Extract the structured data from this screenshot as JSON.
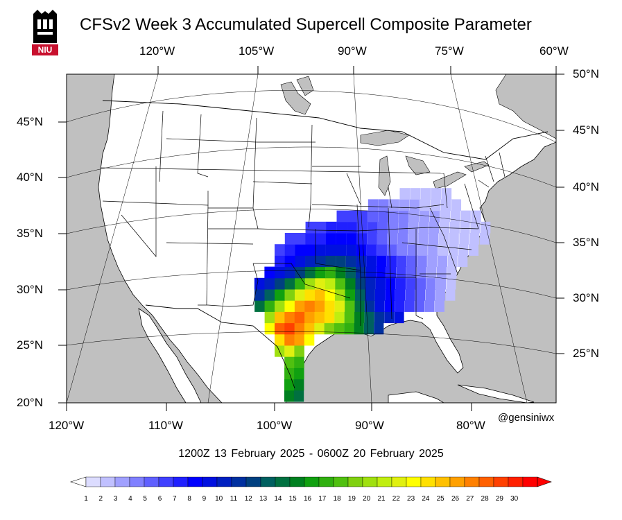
{
  "title": "CFSv2 Week 3 Accumulated Supercell Composite Parameter",
  "logo": {
    "text": "NIU",
    "colors": {
      "dark": "#000000",
      "red": "#c8102e"
    }
  },
  "top_lon_labels": [
    "120°W",
    "105°W",
    "90°W",
    "75°W",
    "60°W"
  ],
  "bottom_lon_labels": [
    "120°W",
    "110°W",
    "100°W",
    "90°W",
    "80°W"
  ],
  "left_lat_labels": [
    "45°N",
    "40°N",
    "35°N",
    "30°N",
    "25°N",
    "20°N"
  ],
  "right_lat_labels": [
    "50°N",
    "45°N",
    "40°N",
    "35°N",
    "30°N",
    "25°N"
  ],
  "handle": "@gensiniwx",
  "date_range": "1200Z 13  February  2025  - 0600Z 20  February  2025",
  "colorbar": {
    "labels": [
      "1",
      "2",
      "3",
      "4",
      "5",
      "6",
      "7",
      "8",
      "9",
      "10",
      "11",
      "12",
      "13",
      "14",
      "15",
      "16",
      "17",
      "18",
      "19",
      "20",
      "21",
      "22",
      "23",
      "24",
      "25",
      "26",
      "27",
      "28",
      "29",
      "30"
    ],
    "colors": [
      "#dcdcff",
      "#c0c0ff",
      "#a0a0ff",
      "#8080ff",
      "#6060ff",
      "#4040ff",
      "#2020ff",
      "#0000ff",
      "#0010e0",
      "#0020c0",
      "#0030a0",
      "#004080",
      "#006060",
      "#007040",
      "#008020",
      "#10a010",
      "#30b010",
      "#50c010",
      "#80d010",
      "#a0e010",
      "#c0ee10",
      "#e0f010",
      "#ffff00",
      "#ffe000",
      "#ffc000",
      "#ffa000",
      "#ff8000",
      "#ff6000",
      "#ff4000",
      "#ff2000",
      "#ff0000"
    ]
  },
  "colors": {
    "land": "#ffffff",
    "ocean": "#c0c0c0",
    "border": "#000000"
  },
  "scp_grid": {
    "cell_degrees": 1,
    "cells": [
      [
        -99,
        20,
        14
      ],
      [
        -98,
        20,
        13
      ],
      [
        -99,
        21,
        15
      ],
      [
        -98,
        21,
        14
      ],
      [
        -99,
        22,
        16
      ],
      [
        -98,
        22,
        15
      ],
      [
        -99,
        23,
        17
      ],
      [
        -98,
        23,
        16
      ],
      [
        -100,
        24,
        19
      ],
      [
        -99,
        24,
        21
      ],
      [
        -98,
        24,
        18
      ],
      [
        -100,
        25,
        23
      ],
      [
        -99,
        25,
        26
      ],
      [
        -98,
        25,
        25
      ],
      [
        -97,
        25,
        22
      ],
      [
        -101,
        26,
        22
      ],
      [
        -100,
        26,
        27
      ],
      [
        -99,
        26,
        28
      ],
      [
        -98,
        26,
        26
      ],
      [
        -97,
        26,
        24
      ],
      [
        -96,
        26,
        21
      ],
      [
        -95,
        26,
        18
      ],
      [
        -94,
        26,
        17
      ],
      [
        -93,
        26,
        16
      ],
      [
        -92,
        26,
        14
      ],
      [
        -91,
        26,
        12
      ],
      [
        -90,
        26,
        10
      ],
      [
        -101,
        27,
        19
      ],
      [
        -100,
        27,
        24
      ],
      [
        -99,
        27,
        26
      ],
      [
        -98,
        27,
        27
      ],
      [
        -97,
        27,
        25
      ],
      [
        -96,
        27,
        24
      ],
      [
        -95,
        27,
        23
      ],
      [
        -94,
        27,
        20
      ],
      [
        -93,
        27,
        17
      ],
      [
        -92,
        27,
        14
      ],
      [
        -91,
        27,
        12
      ],
      [
        -90,
        27,
        10
      ],
      [
        -89,
        27,
        9
      ],
      [
        -88,
        27,
        8
      ],
      [
        -102,
        28,
        13
      ],
      [
        -101,
        28,
        16
      ],
      [
        -100,
        28,
        19
      ],
      [
        -99,
        28,
        22
      ],
      [
        -98,
        28,
        25
      ],
      [
        -97,
        28,
        26
      ],
      [
        -96,
        28,
        25
      ],
      [
        -95,
        28,
        23
      ],
      [
        -94,
        28,
        21
      ],
      [
        -93,
        28,
        17
      ],
      [
        -92,
        28,
        13
      ],
      [
        -91,
        28,
        10
      ],
      [
        -90,
        28,
        8
      ],
      [
        -89,
        28,
        7
      ],
      [
        -88,
        28,
        6
      ],
      [
        -87,
        28,
        5
      ],
      [
        -86,
        28,
        4
      ],
      [
        -85,
        28,
        3
      ],
      [
        -84,
        28,
        2
      ],
      [
        -102,
        29,
        10
      ],
      [
        -101,
        29,
        12
      ],
      [
        -100,
        29,
        15
      ],
      [
        -99,
        29,
        18
      ],
      [
        -98,
        29,
        21
      ],
      [
        -97,
        29,
        23
      ],
      [
        -96,
        29,
        24
      ],
      [
        -95,
        29,
        22
      ],
      [
        -94,
        29,
        19
      ],
      [
        -93,
        29,
        15
      ],
      [
        -92,
        29,
        12
      ],
      [
        -91,
        29,
        9
      ],
      [
        -90,
        29,
        8
      ],
      [
        -89,
        29,
        7
      ],
      [
        -88,
        29,
        6
      ],
      [
        -87,
        29,
        5
      ],
      [
        -86,
        29,
        4
      ],
      [
        -85,
        29,
        3
      ],
      [
        -84,
        29,
        2
      ],
      [
        -83,
        29,
        1
      ],
      [
        -102,
        30,
        8
      ],
      [
        -101,
        30,
        9
      ],
      [
        -100,
        30,
        11
      ],
      [
        -99,
        30,
        13
      ],
      [
        -98,
        30,
        16
      ],
      [
        -97,
        30,
        19
      ],
      [
        -96,
        30,
        21
      ],
      [
        -95,
        30,
        20
      ],
      [
        -94,
        30,
        17
      ],
      [
        -93,
        30,
        14
      ],
      [
        -92,
        30,
        11
      ],
      [
        -91,
        30,
        9
      ],
      [
        -90,
        30,
        8
      ],
      [
        -89,
        30,
        7
      ],
      [
        -88,
        30,
        6
      ],
      [
        -87,
        30,
        5
      ],
      [
        -86,
        30,
        4
      ],
      [
        -85,
        30,
        3
      ],
      [
        -84,
        30,
        2
      ],
      [
        -83,
        30,
        1
      ],
      [
        -101,
        31,
        7
      ],
      [
        -100,
        31,
        8
      ],
      [
        -99,
        31,
        9
      ],
      [
        -98,
        31,
        11
      ],
      [
        -97,
        31,
        13
      ],
      [
        -96,
        31,
        15
      ],
      [
        -95,
        31,
        16
      ],
      [
        -94,
        31,
        14
      ],
      [
        -93,
        31,
        12
      ],
      [
        -92,
        31,
        10
      ],
      [
        -91,
        31,
        8
      ],
      [
        -90,
        31,
        7
      ],
      [
        -89,
        31,
        6
      ],
      [
        -88,
        31,
        5
      ],
      [
        -87,
        31,
        4
      ],
      [
        -86,
        31,
        3
      ],
      [
        -85,
        31,
        2
      ],
      [
        -84,
        31,
        2
      ],
      [
        -83,
        31,
        1
      ],
      [
        -100,
        32,
        6
      ],
      [
        -99,
        32,
        7
      ],
      [
        -98,
        32,
        8
      ],
      [
        -97,
        32,
        9
      ],
      [
        -96,
        32,
        10
      ],
      [
        -95,
        32,
        11
      ],
      [
        -94,
        32,
        11
      ],
      [
        -93,
        32,
        10
      ],
      [
        -92,
        32,
        9
      ],
      [
        -91,
        32,
        8
      ],
      [
        -90,
        32,
        7
      ],
      [
        -89,
        32,
        6
      ],
      [
        -88,
        32,
        5
      ],
      [
        -87,
        32,
        4
      ],
      [
        -86,
        32,
        3
      ],
      [
        -85,
        32,
        2
      ],
      [
        -84,
        32,
        2
      ],
      [
        -83,
        32,
        1
      ],
      [
        -82,
        32,
        1
      ],
      [
        -100,
        33,
        5
      ],
      [
        -99,
        33,
        6
      ],
      [
        -98,
        33,
        7
      ],
      [
        -97,
        33,
        7
      ],
      [
        -96,
        33,
        8
      ],
      [
        -95,
        33,
        8
      ],
      [
        -94,
        33,
        8
      ],
      [
        -93,
        33,
        8
      ],
      [
        -92,
        33,
        7
      ],
      [
        -91,
        33,
        6
      ],
      [
        -90,
        33,
        5
      ],
      [
        -89,
        33,
        4
      ],
      [
        -88,
        33,
        3
      ],
      [
        -87,
        33,
        3
      ],
      [
        -86,
        33,
        2
      ],
      [
        -85,
        33,
        2
      ],
      [
        -84,
        33,
        1
      ],
      [
        -83,
        33,
        1
      ],
      [
        -82,
        33,
        1
      ],
      [
        -81,
        33,
        1
      ],
      [
        -99,
        34,
        5
      ],
      [
        -98,
        34,
        5
      ],
      [
        -97,
        34,
        6
      ],
      [
        -96,
        34,
        6
      ],
      [
        -95,
        34,
        7
      ],
      [
        -94,
        34,
        7
      ],
      [
        -93,
        34,
        7
      ],
      [
        -92,
        34,
        6
      ],
      [
        -91,
        34,
        5
      ],
      [
        -90,
        34,
        4
      ],
      [
        -89,
        34,
        3
      ],
      [
        -88,
        34,
        3
      ],
      [
        -87,
        34,
        2
      ],
      [
        -86,
        34,
        2
      ],
      [
        -85,
        34,
        2
      ],
      [
        -84,
        34,
        1
      ],
      [
        -83,
        34,
        1
      ],
      [
        -82,
        34,
        1
      ],
      [
        -81,
        34,
        1
      ],
      [
        -80,
        34,
        1
      ],
      [
        -97,
        35,
        5
      ],
      [
        -96,
        35,
        5
      ],
      [
        -95,
        35,
        6
      ],
      [
        -94,
        35,
        6
      ],
      [
        -93,
        35,
        6
      ],
      [
        -92,
        35,
        5
      ],
      [
        -91,
        35,
        5
      ],
      [
        -90,
        35,
        4
      ],
      [
        -89,
        35,
        3
      ],
      [
        -88,
        35,
        3
      ],
      [
        -87,
        35,
        2
      ],
      [
        -86,
        35,
        2
      ],
      [
        -85,
        35,
        2
      ],
      [
        -84,
        35,
        1
      ],
      [
        -83,
        35,
        1
      ],
      [
        -82,
        35,
        1
      ],
      [
        -81,
        35,
        1
      ],
      [
        -80,
        35,
        1
      ],
      [
        -94,
        36,
        5
      ],
      [
        -93,
        36,
        5
      ],
      [
        -92,
        36,
        5
      ],
      [
        -91,
        36,
        4
      ],
      [
        -90,
        36,
        4
      ],
      [
        -89,
        36,
        3
      ],
      [
        -88,
        36,
        3
      ],
      [
        -87,
        36,
        2
      ],
      [
        -86,
        36,
        2
      ],
      [
        -85,
        36,
        2
      ],
      [
        -84,
        36,
        1
      ],
      [
        -83,
        36,
        1
      ],
      [
        -82,
        36,
        1
      ],
      [
        -81,
        36,
        1
      ],
      [
        -91,
        37,
        3
      ],
      [
        -90,
        37,
        3
      ],
      [
        -89,
        37,
        2
      ],
      [
        -88,
        37,
        2
      ],
      [
        -87,
        37,
        2
      ],
      [
        -86,
        37,
        1
      ],
      [
        -85,
        37,
        1
      ],
      [
        -84,
        37,
        1
      ],
      [
        -83,
        37,
        1
      ],
      [
        -88,
        38,
        1
      ],
      [
        -87,
        38,
        1
      ],
      [
        -86,
        38,
        1
      ],
      [
        -85,
        38,
        1
      ],
      [
        -84,
        38,
        1
      ]
    ]
  }
}
